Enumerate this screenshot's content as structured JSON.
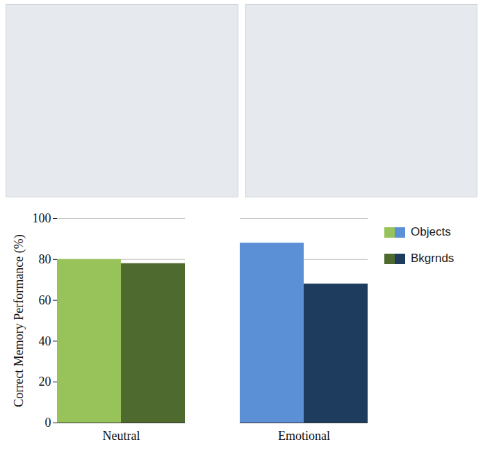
{
  "chart_data": {
    "type": "bar",
    "categories": [
      "Neutral",
      "Emotional"
    ],
    "series": [
      {
        "name": "Objects",
        "colors": [
          "#98c35b",
          "#5b8fd6"
        ],
        "values": [
          80,
          88
        ]
      },
      {
        "name": "Bkgrnds",
        "colors": [
          "#4f6a2f",
          "#1e3d5e"
        ],
        "values": [
          78,
          68
        ]
      }
    ],
    "y_label": "Correct Memory Performance (%)",
    "ylim": [
      0,
      100
    ],
    "yticks": [
      0,
      20,
      40,
      60,
      80,
      100
    ],
    "grid": true,
    "legend": "right"
  }
}
